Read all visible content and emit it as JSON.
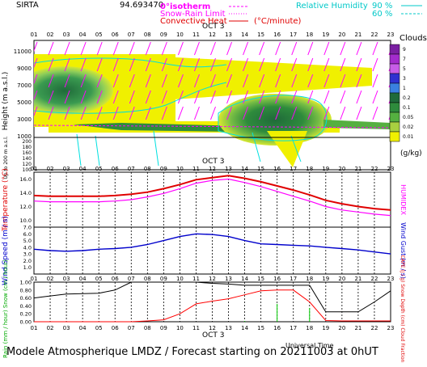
{
  "header": {
    "site": "SIRTA",
    "coords": "94.693470",
    "isotherm_label": "0°isotherm",
    "snow_rain_label": "Snow-Rain Limit",
    "convective_label": "Convective Heat",
    "convective_unit": "(°C/minute)",
    "rh_label": "Relative Humidity",
    "rh_90": "90 %",
    "rh_60": "60 %"
  },
  "footer": {
    "text": "Modele Atmospherique LMDZ / Forecast starting on 20211003 at 0hUT",
    "universal_time": "Universal Time"
  },
  "colors": {
    "temperature": "#e00000",
    "humidex": "#ff00ff",
    "wind": "#0000cc",
    "cloud_fraction": "#000000",
    "rain": "#00cc00",
    "snow": "#0000ff",
    "cape": "#ff0000",
    "rh_contour": "#00e0e0"
  },
  "chart_data": [
    {
      "type": "heatmap",
      "title": "",
      "date_label": "OCT 3",
      "xlabel": "",
      "ylabel": "Height (m a.s.l.)",
      "ylabel_low": "Up to 200 m a.s.l.",
      "x_ticks": [
        "01",
        "02",
        "03",
        "04",
        "05",
        "06",
        "07",
        "08",
        "09",
        "10",
        "11",
        "12",
        "13",
        "14",
        "15",
        "16",
        "17",
        "18",
        "19",
        "20",
        "21",
        "22",
        "23"
      ],
      "y_ticks_upper": [
        "11000",
        "9000",
        "7000",
        "5000",
        "3000",
        "1000"
      ],
      "y_ticks_lower": [
        "200",
        "180",
        "160",
        "140",
        "120",
        "100"
      ],
      "colorbar_title": "Clouds",
      "colorbar_unit": "(g/kg)",
      "colorbar_ticks": [
        "9",
        "7",
        "5",
        "3",
        "1",
        "0.2",
        "0.1",
        "0.05",
        "0.02",
        "0.01"
      ],
      "colorbar_colors": [
        "#7a1fa2",
        "#a32ccc",
        "#c85de8",
        "#3030d0",
        "#3a80e0",
        "#1f6a3a",
        "#2e8b3c",
        "#55b040",
        "#a8d040",
        "#f0f000"
      ],
      "series": [
        {
          "name": "Relative Humidity 90 %"
        },
        {
          "name": "Relative Humidity 60 %"
        }
      ]
    },
    {
      "type": "line",
      "ylabel": "Temperature (°C)",
      "ylabel_right": "HUMIDEX",
      "x_ticks": [
        "01",
        "02",
        "03",
        "04",
        "05",
        "06",
        "07",
        "08",
        "09",
        "10",
        "11",
        "12",
        "13",
        "14",
        "15",
        "16",
        "17",
        "18",
        "19",
        "20",
        "21",
        "22",
        "23"
      ],
      "y_ticks": [
        "16.0",
        "14.0",
        "12.0",
        "10.0"
      ],
      "ylim": [
        9.0,
        17.0
      ],
      "series": [
        {
          "name": "Temperature",
          "values": [
            13.6,
            13.5,
            13.5,
            13.5,
            13.5,
            13.6,
            13.8,
            14.1,
            14.6,
            15.2,
            15.9,
            16.2,
            16.5,
            16.1,
            15.6,
            15.0,
            14.4,
            13.7,
            12.9,
            12.4,
            12.0,
            11.7,
            11.5
          ]
        },
        {
          "name": "HUMIDEX",
          "values": [
            12.8,
            12.7,
            12.7,
            12.7,
            12.7,
            12.8,
            13.0,
            13.4,
            13.9,
            14.6,
            15.4,
            15.8,
            16.0,
            15.5,
            14.9,
            14.2,
            13.5,
            12.8,
            12.0,
            11.5,
            11.2,
            10.9,
            10.7
          ]
        }
      ]
    },
    {
      "type": "line",
      "ylabel": "Wind Speed (m / s)",
      "ylabel_right": "Wind Gust (m / s)",
      "x_ticks": [
        "01",
        "02",
        "03",
        "04",
        "05",
        "06",
        "07",
        "08",
        "09",
        "10",
        "11",
        "12",
        "13",
        "14",
        "15",
        "16",
        "17",
        "18",
        "19",
        "20",
        "21",
        "22",
        "23"
      ],
      "y_ticks": [
        "7.0",
        "6.0",
        "5.0",
        "4.0",
        "3.0",
        "2.0",
        "1.0"
      ],
      "ylim": [
        0.0,
        7.0
      ],
      "series": [
        {
          "name": "Wind Speed",
          "values": [
            3.7,
            3.5,
            3.4,
            3.5,
            3.7,
            3.8,
            4.0,
            4.4,
            5.0,
            5.6,
            6.0,
            5.9,
            5.6,
            5.0,
            4.5,
            4.4,
            4.3,
            4.2,
            4.0,
            3.8,
            3.6,
            3.3,
            3.0
          ]
        }
      ]
    },
    {
      "type": "line",
      "date_label": "OCT 3",
      "xlabel": "Universal Time",
      "ylabel": "Rain (mm / hour) Snow (cm / hour)",
      "ylabel_right": "CAPE (J / g) Snow Depth (cm) Cloud Fraction",
      "x_ticks": [
        "01",
        "02",
        "03",
        "04",
        "05",
        "06",
        "07",
        "08",
        "09",
        "10",
        "11",
        "12",
        "13",
        "14",
        "15",
        "16",
        "17",
        "18",
        "19",
        "20",
        "21",
        "22",
        "23"
      ],
      "y_ticks": [
        "1.00",
        "0.80",
        "0.60",
        "0.40",
        "0.20",
        "0.00"
      ],
      "ylim": [
        0.0,
        1.0
      ],
      "series": [
        {
          "name": "Cloud Fraction",
          "values": [
            0.6,
            0.65,
            0.7,
            0.71,
            0.72,
            0.8,
            1.0,
            1.0,
            1.0,
            1.0,
            1.0,
            0.97,
            0.95,
            0.92,
            0.92,
            0.92,
            0.92,
            0.92,
            0.25,
            0.25,
            0.25,
            0.5,
            0.78
          ]
        },
        {
          "name": "CAPE",
          "values": [
            0.0,
            0.0,
            0.0,
            0.0,
            0.0,
            0.0,
            0.0,
            0.02,
            0.05,
            0.2,
            0.45,
            0.52,
            0.58,
            0.68,
            0.78,
            0.8,
            0.8,
            0.5,
            0.03,
            0.02,
            0.02,
            0.02,
            0.02
          ]
        },
        {
          "name": "Rain",
          "values": [
            0,
            0,
            0,
            0,
            0,
            0,
            0,
            0,
            0,
            0,
            0,
            0,
            0,
            0.02,
            0,
            0.45,
            0,
            0.35,
            0,
            0,
            0,
            0,
            0
          ]
        }
      ]
    }
  ]
}
